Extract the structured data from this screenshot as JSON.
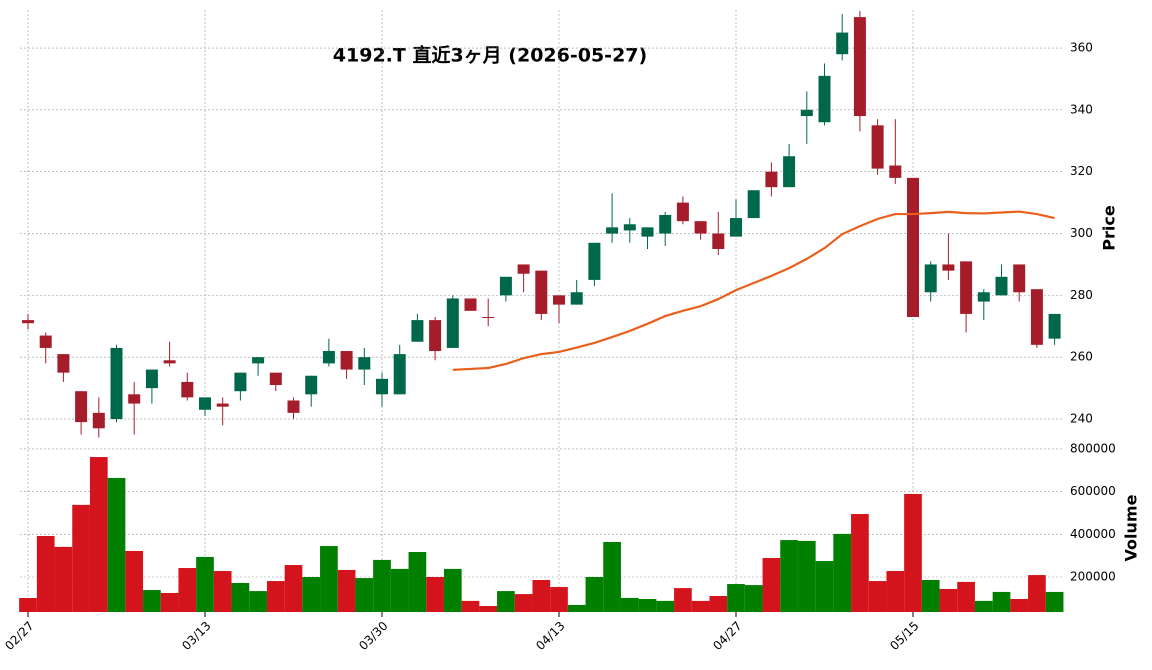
{
  "chart_data": [
    {
      "type": "candlestick",
      "title": "4192.T  直近3ヶ月  (2026-05-27)",
      "ylabel": "Price",
      "categories": [
        "02/27",
        null,
        null,
        null,
        null,
        null,
        null,
        null,
        null,
        null,
        "03/13",
        null,
        null,
        null,
        null,
        null,
        null,
        null,
        null,
        null,
        "03/30",
        null,
        null,
        null,
        null,
        null,
        null,
        null,
        null,
        null,
        "04/13",
        null,
        null,
        null,
        null,
        null,
        null,
        null,
        null,
        null,
        "04/27",
        null,
        null,
        null,
        null,
        null,
        null,
        null,
        null,
        null,
        "05/15",
        null,
        null,
        null,
        null,
        null,
        null,
        null,
        null
      ],
      "open": [
        272,
        267,
        261,
        249,
        242,
        240,
        248,
        250,
        259,
        252,
        243,
        245,
        249,
        258,
        255,
        246,
        248,
        258,
        262,
        256,
        248,
        248,
        265,
        272,
        263,
        279,
        273,
        280,
        290,
        288,
        280,
        277,
        285,
        300,
        301,
        299,
        300,
        310,
        304,
        300,
        299,
        305,
        320,
        315,
        338,
        336,
        358,
        370,
        335,
        322,
        318,
        281,
        290,
        291,
        278,
        280,
        290,
        282,
        266
      ],
      "high": [
        274,
        268,
        261,
        249,
        247,
        264,
        252,
        256,
        265,
        255,
        247,
        247,
        255,
        260,
        255,
        247,
        254,
        266,
        262,
        263,
        255,
        264,
        274,
        273,
        280,
        279,
        279,
        286,
        290,
        288,
        280,
        285,
        297,
        313,
        305,
        302,
        307,
        312,
        304,
        307,
        311,
        314,
        323,
        329,
        346,
        355,
        371,
        372,
        337,
        337,
        318,
        291,
        300,
        291,
        282,
        290,
        290,
        282,
        274
      ],
      "low": [
        269,
        258,
        252,
        235,
        234,
        239,
        235,
        245,
        257,
        246,
        241,
        238,
        246,
        254,
        249,
        240,
        244,
        257,
        253,
        251,
        244,
        248,
        265,
        259,
        263,
        275,
        270,
        278,
        281,
        272,
        271,
        277,
        283,
        297,
        297,
        295,
        296,
        303,
        298,
        293,
        299,
        305,
        312,
        315,
        329,
        335,
        356,
        333,
        319,
        316,
        273,
        278,
        285,
        268,
        272,
        280,
        278,
        263,
        264
      ],
      "close": [
        271,
        263,
        255,
        239,
        237,
        263,
        245,
        256,
        258,
        247,
        247,
        244,
        255,
        260,
        251,
        242,
        254,
        262,
        256,
        260,
        253,
        261,
        272,
        262,
        279,
        275,
        272.7,
        286,
        287,
        274,
        277,
        281,
        297,
        302,
        303,
        302,
        306,
        304,
        300,
        295,
        305,
        314,
        315,
        325,
        340,
        351,
        365,
        338,
        321,
        318,
        273,
        290,
        288,
        274,
        281,
        286,
        281,
        264,
        274
      ],
      "up_color": "#00684a",
      "down_color": "#a51d2b",
      "series": [
        {
          "color": "#e8601c",
          "values": [
            null,
            null,
            null,
            null,
            null,
            null,
            null,
            null,
            null,
            null,
            null,
            null,
            null,
            null,
            null,
            null,
            null,
            null,
            null,
            null,
            null,
            null,
            null,
            null,
            255.9,
            256.2,
            256.5,
            257.8,
            259.7,
            261,
            261.7,
            263.1,
            264.6,
            266.5,
            268.5,
            270.8,
            273.3,
            275,
            276.5,
            278.8,
            281.7,
            284,
            286.3,
            288.8,
            291.8,
            295.3,
            299.8,
            302.4,
            304.7,
            306.3,
            306.3,
            306.6,
            307,
            306.6,
            306.5,
            306.8,
            307.1,
            306.3,
            305
          ]
        }
      ],
      "ylim": [
        231.6,
        372.3
      ],
      "yticks": [
        240,
        260,
        280,
        300,
        320,
        340,
        360
      ],
      "grid": true
    },
    {
      "type": "bar",
      "ylabel": "Volume",
      "values": [
        101600,
        392000,
        341000,
        538000,
        762000,
        664000,
        322000,
        139000,
        125000,
        242000,
        294000,
        228000,
        172000,
        134000,
        181000,
        256000,
        200000,
        345000,
        233000,
        195000,
        280000,
        238000,
        317000,
        200000,
        238000,
        88000,
        64000,
        134000,
        120000,
        186000,
        153000,
        69000,
        200000,
        364000,
        102000,
        97000,
        88000,
        148000,
        88000,
        111000,
        167000,
        162000,
        289000,
        373000,
        369000,
        275000,
        402000,
        495000,
        181000,
        228000,
        589000,
        186000,
        144000,
        177000,
        88000,
        130000,
        97000,
        209000,
        130000
      ],
      "up_color": "#007f00",
      "down_color": "#d4141c",
      "ylim": [
        36000,
        809000
      ],
      "yticks": [
        200000,
        400000,
        600000,
        800000
      ],
      "grid": true
    }
  ]
}
